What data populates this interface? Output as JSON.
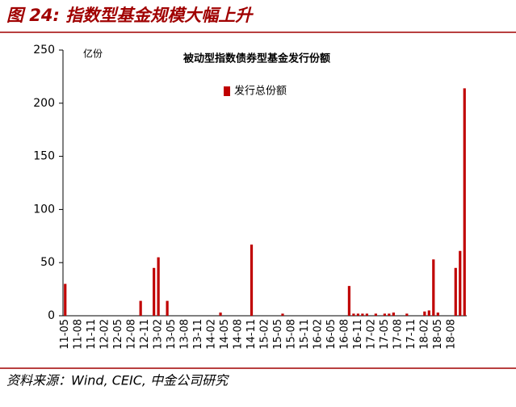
{
  "figure_title": "图 24: 指数型基金规模大幅上升",
  "source": "资料来源：Wind, CEIC, 中金公司研究",
  "chart_data": {
    "type": "bar",
    "title": "被动型指数债券型基金发行份额",
    "y_label": "亿份",
    "legend": "top",
    "categories": [
      "11-05",
      null,
      null,
      "11-08",
      null,
      null,
      "11-11",
      null,
      null,
      "12-02",
      null,
      null,
      "12-05",
      null,
      null,
      "12-08",
      null,
      null,
      "12-11",
      null,
      null,
      "13-02",
      null,
      null,
      "13-05",
      null,
      null,
      "13-08",
      null,
      null,
      "13-11",
      null,
      null,
      "14-02",
      null,
      null,
      "14-05",
      null,
      null,
      "14-08",
      null,
      null,
      "14-11",
      null,
      null,
      "15-02",
      null,
      null,
      "15-05",
      null,
      null,
      "15-08",
      null,
      null,
      "15-11",
      null,
      null,
      "16-02",
      null,
      null,
      "16-05",
      null,
      null,
      "16-08",
      null,
      null,
      "16-11",
      null,
      null,
      "17-02",
      null,
      null,
      "17-05",
      null,
      null,
      "17-08",
      null,
      null,
      "17-11",
      null,
      null,
      "18-02",
      null,
      null,
      "18-05",
      null,
      null,
      "18-08",
      null,
      null,
      null
    ],
    "series": [
      {
        "name": "发行总份额",
        "color": "#c00000",
        "values": [
          30,
          0,
          0,
          0,
          0,
          0,
          0,
          0,
          0,
          0,
          0,
          0,
          0,
          0,
          0,
          0,
          0,
          14,
          0,
          0,
          45,
          55,
          0,
          14,
          0,
          0,
          0,
          0,
          0,
          0,
          0,
          0,
          0,
          0,
          0,
          3,
          0,
          0,
          0,
          0,
          0,
          0,
          67,
          0,
          0,
          0,
          0,
          0,
          0,
          2,
          0,
          0,
          0,
          0,
          0,
          0,
          0,
          0,
          0,
          0,
          0,
          0,
          0,
          0,
          28,
          2,
          2,
          2,
          2,
          0,
          2,
          0,
          2,
          2,
          3,
          0,
          0,
          2,
          0,
          0,
          0,
          4,
          5,
          53,
          3,
          0,
          0,
          0,
          45,
          61,
          214
        ]
      }
    ],
    "ylim": [
      0,
      250
    ],
    "yticks": [
      0,
      50,
      100,
      150,
      200,
      250
    ]
  }
}
